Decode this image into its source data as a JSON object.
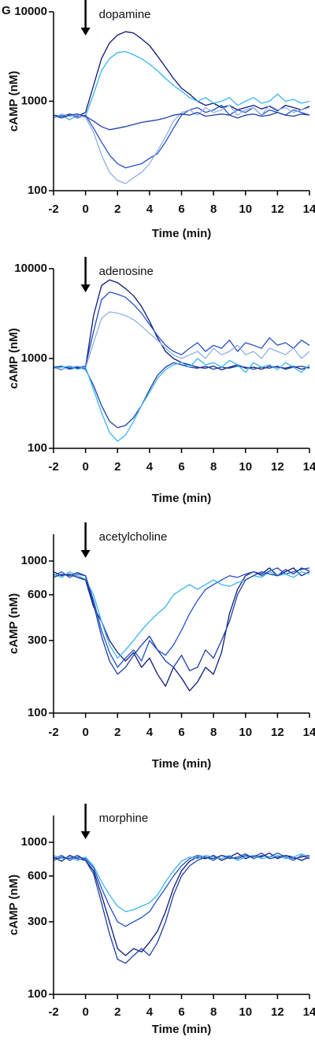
{
  "panel_label": "G",
  "chart_data": [
    {
      "type": "line",
      "annotation": "dopamine",
      "xlabel": "Time (min)",
      "ylabel": "cAMP (nM)",
      "log_y": true,
      "xlim": [
        -2,
        14
      ],
      "xticks": [
        -2,
        0,
        2,
        4,
        6,
        8,
        10,
        12,
        14
      ],
      "ylim": [
        100,
        10000
      ],
      "yticks": [
        100,
        1000,
        10000
      ],
      "x": [
        -2,
        -1.5,
        -1,
        -0.5,
        0,
        0.5,
        1,
        1.5,
        2,
        2.5,
        3,
        3.5,
        4,
        4.5,
        5,
        5.5,
        6,
        6.5,
        7,
        7.5,
        8,
        8.5,
        9,
        9.5,
        10,
        10.5,
        11,
        11.5,
        12,
        12.5,
        13,
        13.5,
        14
      ],
      "series": [
        {
          "color": "#0d1a7a",
          "values": [
            700,
            650,
            720,
            680,
            750,
            1500,
            3000,
            4500,
            5500,
            6000,
            5800,
            5000,
            4200,
            3200,
            2400,
            1800,
            1400,
            1200,
            1000,
            900,
            950,
            850,
            900,
            800,
            850,
            900,
            820,
            880,
            780,
            900,
            850,
            800,
            880
          ]
        },
        {
          "color": "#38b6ee",
          "values": [
            650,
            700,
            620,
            700,
            680,
            1200,
            2200,
            3000,
            3500,
            3600,
            3300,
            3000,
            2600,
            2200,
            1800,
            1500,
            1300,
            1100,
            1000,
            1100,
            950,
            1000,
            1100,
            900,
            1000,
            1100,
            950,
            1000,
            1200,
            1000,
            1050,
            950,
            1000
          ]
        },
        {
          "color": "#2450c8",
          "values": [
            700,
            680,
            720,
            650,
            700,
            500,
            350,
            250,
            200,
            180,
            190,
            200,
            230,
            260,
            350,
            500,
            700,
            800,
            850,
            750,
            800,
            900,
            700,
            800,
            750,
            850,
            700,
            800,
            750,
            700,
            800,
            750,
            700
          ]
        },
        {
          "color": "#8fb0ea",
          "values": [
            650,
            720,
            680,
            700,
            660,
            450,
            250,
            160,
            130,
            120,
            140,
            160,
            200,
            280,
            400,
            600,
            750,
            800,
            700,
            850,
            750,
            800,
            900,
            700,
            800,
            850,
            700,
            900,
            800,
            850,
            750,
            800,
            850
          ]
        },
        {
          "color": "#1f3fa8",
          "values": [
            700,
            650,
            700,
            720,
            680,
            600,
            520,
            480,
            500,
            520,
            550,
            580,
            600,
            620,
            650,
            700,
            720,
            700,
            750,
            680,
            700,
            720,
            700,
            650,
            700,
            720,
            680,
            700,
            750,
            700,
            680,
            720,
            700
          ]
        }
      ]
    },
    {
      "type": "line",
      "annotation": "adenosine",
      "xlabel": "Time (min)",
      "ylabel": "cAMP (nM)",
      "log_y": true,
      "xlim": [
        -2,
        14
      ],
      "xticks": [
        -2,
        0,
        2,
        4,
        6,
        8,
        10,
        12,
        14
      ],
      "ylim": [
        100,
        10000
      ],
      "yticks": [
        100,
        1000,
        10000
      ],
      "x": [
        -2,
        -1.5,
        -1,
        -0.5,
        0,
        0.5,
        1,
        1.5,
        2,
        2.5,
        3,
        3.5,
        4,
        4.5,
        5,
        5.5,
        6,
        6.5,
        7,
        7.5,
        8,
        8.5,
        9,
        9.5,
        10,
        10.5,
        11,
        11.5,
        12,
        12.5,
        13,
        13.5,
        14
      ],
      "series": [
        {
          "color": "#0d1a7a",
          "values": [
            800,
            750,
            820,
            780,
            800,
            3000,
            6500,
            7500,
            7000,
            6000,
            5000,
            3800,
            2600,
            1700,
            1200,
            1000,
            900,
            850,
            800,
            780,
            820,
            750,
            800,
            850,
            780,
            800,
            760,
            820,
            800,
            780,
            820,
            760,
            800
          ]
        },
        {
          "color": "#2450c8",
          "values": [
            780,
            820,
            760,
            800,
            820,
            2000,
            4500,
            5500,
            5200,
            4800,
            4000,
            3200,
            2400,
            1800,
            1400,
            1200,
            1100,
            1300,
            1500,
            1200,
            1400,
            1300,
            1600,
            1200,
            1500,
            1400,
            1300,
            1700,
            1400,
            1500,
            1300,
            1600,
            1400
          ]
        },
        {
          "color": "#8fb0ea",
          "values": [
            800,
            760,
            800,
            820,
            780,
            1500,
            2800,
            3300,
            3200,
            3000,
            2700,
            2300,
            1900,
            1600,
            1300,
            1100,
            1000,
            1100,
            1200,
            1000,
            1300,
            1100,
            1200,
            1400,
            1100,
            1200,
            1000,
            1300,
            1200,
            1100,
            1300,
            1000,
            1200
          ]
        },
        {
          "color": "#1f3fa8",
          "values": [
            800,
            820,
            780,
            800,
            760,
            500,
            300,
            200,
            170,
            180,
            220,
            300,
            450,
            650,
            800,
            900,
            850,
            800,
            780,
            820,
            760,
            800,
            780,
            820,
            800,
            760,
            800,
            780,
            820,
            760,
            800,
            820,
            780
          ]
        },
        {
          "color": "#38b6ee",
          "values": [
            780,
            800,
            820,
            760,
            800,
            450,
            250,
            150,
            120,
            140,
            200,
            300,
            420,
            600,
            750,
            850,
            900,
            800,
            1000,
            850,
            900,
            800,
            950,
            850,
            700,
            900,
            800,
            850,
            750,
            900,
            800,
            700,
            850
          ]
        }
      ]
    },
    {
      "type": "line",
      "annotation": "acetylcholine",
      "xlabel": "Time (min)",
      "ylabel": "cAMP (nM)",
      "log_y": true,
      "xlim": [
        -2,
        14
      ],
      "xticks": [
        -2,
        0,
        2,
        4,
        6,
        8,
        10,
        12,
        14
      ],
      "ylim": [
        100,
        1500
      ],
      "yticks": [
        100,
        300,
        600,
        1000
      ],
      "x": [
        -2,
        -1.5,
        -1,
        -0.5,
        0,
        0.5,
        1,
        1.5,
        2,
        2.5,
        3,
        3.5,
        4,
        4.5,
        5,
        5.5,
        6,
        6.5,
        7,
        7.5,
        8,
        8.5,
        9,
        9.5,
        10,
        10.5,
        11,
        11.5,
        12,
        12.5,
        13,
        13.5,
        14
      ],
      "series": [
        {
          "color": "#0d1a7a",
          "values": [
            850,
            800,
            820,
            780,
            750,
            500,
            400,
            300,
            250,
            220,
            250,
            200,
            230,
            180,
            150,
            200,
            170,
            140,
            160,
            200,
            180,
            250,
            450,
            650,
            800,
            850,
            820,
            900,
            800,
            850,
            900,
            800,
            850
          ]
        },
        {
          "color": "#2450c8",
          "values": [
            800,
            850,
            780,
            820,
            800,
            550,
            350,
            250,
            200,
            230,
            260,
            220,
            300,
            260,
            240,
            280,
            350,
            450,
            550,
            650,
            700,
            750,
            800,
            780,
            820,
            850,
            800,
            860,
            900,
            820,
            850,
            880,
            900
          ]
        },
        {
          "color": "#38b6ee",
          "values": [
            820,
            780,
            850,
            800,
            760,
            600,
            400,
            280,
            230,
            260,
            300,
            350,
            400,
            450,
            500,
            600,
            650,
            700,
            650,
            700,
            750,
            700,
            680,
            720,
            750,
            800,
            780,
            850,
            800,
            820,
            780,
            850,
            820
          ]
        },
        {
          "color": "#1f3fa8",
          "values": [
            780,
            820,
            800,
            840,
            800,
            520,
            320,
            220,
            180,
            200,
            240,
            280,
            320,
            260,
            220,
            200,
            240,
            190,
            200,
            260,
            230,
            300,
            400,
            600,
            750,
            800,
            850,
            820,
            800,
            880,
            820,
            900,
            860
          ]
        }
      ]
    },
    {
      "type": "line",
      "annotation": "morphine",
      "xlabel": "Time (min)",
      "ylabel": "cAMP (nM)",
      "log_y": true,
      "xlim": [
        -2,
        14
      ],
      "xticks": [
        -2,
        0,
        2,
        4,
        6,
        8,
        10,
        12,
        14
      ],
      "ylim": [
        100,
        1500
      ],
      "yticks": [
        100,
        300,
        600,
        1000
      ],
      "x": [
        -2,
        -1.5,
        -1,
        -0.5,
        0,
        0.5,
        1,
        1.5,
        2,
        2.5,
        3,
        3.5,
        4,
        4.5,
        5,
        5.5,
        6,
        6.5,
        7,
        7.5,
        8,
        8.5,
        9,
        9.5,
        10,
        10.5,
        11,
        11.5,
        12,
        12.5,
        13,
        13.5,
        14
      ],
      "series": [
        {
          "color": "#0d1a7a",
          "values": [
            800,
            750,
            820,
            780,
            760,
            650,
            450,
            300,
            200,
            180,
            200,
            190,
            220,
            260,
            350,
            500,
            650,
            750,
            800,
            780,
            820,
            760,
            800,
            850,
            780,
            820,
            800,
            850,
            780,
            820,
            800,
            760,
            800
          ]
        },
        {
          "color": "#2450c8",
          "values": [
            780,
            820,
            760,
            800,
            780,
            680,
            500,
            380,
            300,
            280,
            300,
            320,
            350,
            420,
            500,
            600,
            700,
            780,
            820,
            800,
            760,
            820,
            780,
            800,
            840,
            780,
            820,
            800,
            850,
            800,
            760,
            820,
            780
          ]
        },
        {
          "color": "#38b6ee",
          "values": [
            820,
            780,
            800,
            760,
            800,
            700,
            550,
            450,
            380,
            350,
            360,
            380,
            400,
            450,
            550,
            650,
            750,
            800,
            780,
            820,
            800,
            780,
            820,
            760,
            800,
            820,
            780,
            800,
            820,
            780,
            800,
            840,
            800
          ]
        },
        {
          "color": "#1f3fa8",
          "values": [
            760,
            800,
            780,
            820,
            760,
            620,
            400,
            250,
            170,
            160,
            180,
            200,
            180,
            220,
            300,
            450,
            600,
            700,
            760,
            800,
            780,
            820,
            800,
            780,
            820,
            800,
            850,
            780,
            800,
            820,
            780,
            800,
            820
          ]
        }
      ]
    }
  ]
}
